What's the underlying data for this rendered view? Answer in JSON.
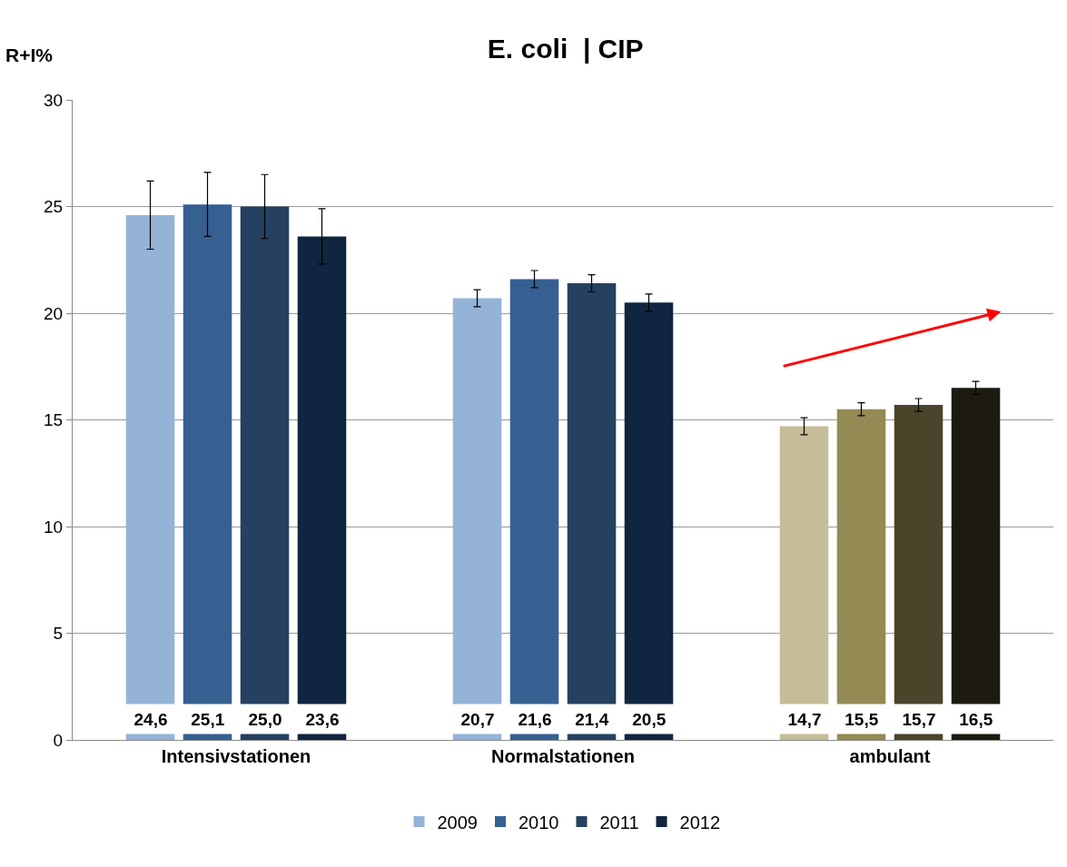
{
  "chart_data": {
    "type": "bar",
    "title": "E. coli  | CIP",
    "ylabel": "R+I%",
    "categories": [
      "Intensivstationen",
      "Normalstationen",
      "ambulant"
    ],
    "series": [
      {
        "name": "2009",
        "colors": [
          "#95b3d7",
          "#95b3d7",
          "#c4bd97"
        ],
        "values": [
          24.6,
          20.7,
          14.7
        ],
        "value_labels": [
          "24,6",
          "20,7",
          "14,7"
        ],
        "errors": [
          [
            23.0,
            26.2
          ],
          [
            20.3,
            21.1
          ],
          [
            14.3,
            15.1
          ]
        ]
      },
      {
        "name": "2010",
        "colors": [
          "#366092",
          "#366092",
          "#948a54"
        ],
        "values": [
          25.1,
          21.6,
          15.5
        ],
        "value_labels": [
          "25,1",
          "21,6",
          "15,5"
        ],
        "errors": [
          [
            23.6,
            26.6
          ],
          [
            21.2,
            22.0
          ],
          [
            15.2,
            15.8
          ]
        ]
      },
      {
        "name": "2011",
        "colors": [
          "#254061",
          "#254061",
          "#4a452a"
        ],
        "values": [
          25.0,
          21.4,
          15.7
        ],
        "value_labels": [
          "25,0",
          "21,4",
          "15,7"
        ],
        "errors": [
          [
            23.5,
            26.5
          ],
          [
            21.0,
            21.8
          ],
          [
            15.4,
            16.0
          ]
        ]
      },
      {
        "name": "2012",
        "colors": [
          "#10253f",
          "#10253f",
          "#1d1b10"
        ],
        "values": [
          23.6,
          20.5,
          16.5
        ],
        "value_labels": [
          "23,6",
          "20,5",
          "16,5"
        ],
        "errors": [
          [
            22.3,
            24.9
          ],
          [
            20.1,
            20.9
          ],
          [
            16.2,
            16.8
          ]
        ]
      }
    ],
    "ylim": [
      0,
      30
    ],
    "yticks": [
      0,
      5,
      10,
      15,
      20,
      25,
      30
    ],
    "grid": "y",
    "legend": "bottom"
  }
}
